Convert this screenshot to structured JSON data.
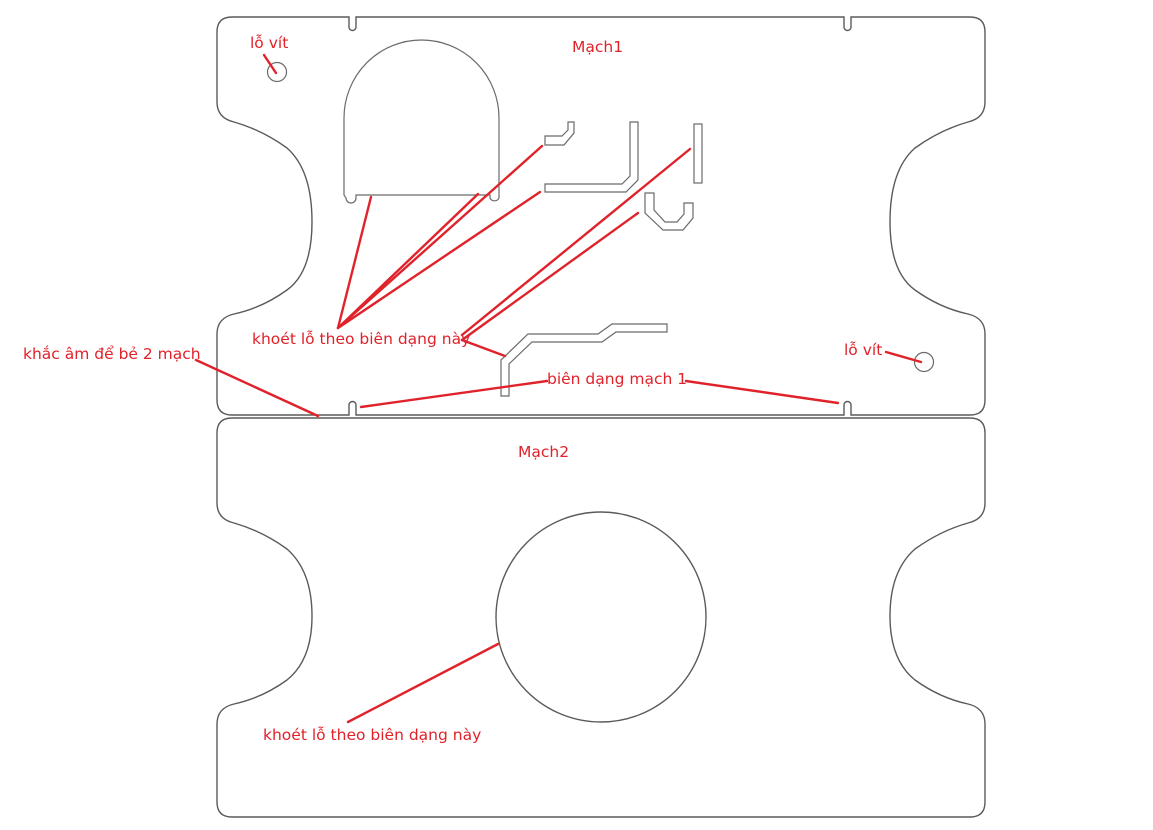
{
  "labels": {
    "screw_hole_top": "lỗ vít",
    "board1_title": "Mạch1",
    "cut_holes_1": "khoét lỗ theo biên dạng này",
    "v_score": "khắc âm để bẻ 2 mạch",
    "screw_hole_right": "lỗ vít",
    "board1_profile": "biên dạng mạch 1",
    "board2_title": "Mạch2",
    "cut_holes_2": "khoét lỗ theo biên dạng này"
  },
  "colors": {
    "annotation": "#e0222a",
    "outline": "#5a5a5a",
    "background": "#ffffff"
  }
}
